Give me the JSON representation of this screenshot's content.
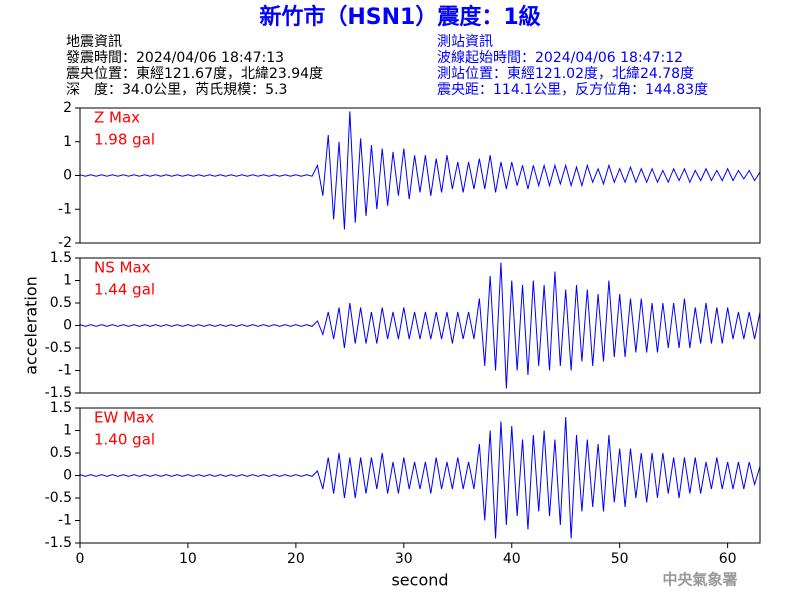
{
  "header": {
    "title": "新竹市（HSN1）震度：1級",
    "left": [
      "地震資訊",
      "發震時間：2024/04/06 18:47:13",
      "震央位置：東經121.67度，北緯23.94度",
      "深　度：34.0公里，芮氏規模：5.3"
    ],
    "right": [
      "測站資訊",
      "波線起始時間：2024/04/06 18:47:12",
      "測站位置：東經121.02度，北緯24.78度",
      "震央距：114.1公里，反方位角：144.83度"
    ]
  },
  "footer": "中央氣象署",
  "chart_data": [
    {
      "type": "line",
      "annotations": [
        "Z Max",
        "1.98 gal"
      ],
      "color": "#0000ff",
      "annotation_color": "#ff0000",
      "xlim": [
        0,
        63
      ],
      "ylim": [
        -2,
        2
      ],
      "yticks": [
        -2,
        -1,
        0,
        1,
        2
      ],
      "x": [
        0,
        0.5,
        1,
        1.5,
        2,
        2.5,
        3,
        3.5,
        4,
        4.5,
        5,
        5.5,
        6,
        6.5,
        7,
        7.5,
        8,
        8.5,
        9,
        9.5,
        10,
        10.5,
        11,
        11.5,
        12,
        12.5,
        13,
        13.5,
        14,
        14.5,
        15,
        15.5,
        16,
        16.5,
        17,
        17.5,
        18,
        18.5,
        19,
        19.5,
        20,
        20.5,
        21,
        21.5,
        22,
        22.5,
        23,
        23.5,
        24,
        24.5,
        25,
        25.5,
        26,
        26.5,
        27,
        27.5,
        28,
        28.5,
        29,
        29.5,
        30,
        30.5,
        31,
        31.5,
        32,
        32.5,
        33,
        33.5,
        34,
        34.5,
        35,
        35.5,
        36,
        36.5,
        37,
        37.5,
        38,
        38.5,
        39,
        39.5,
        40,
        40.5,
        41,
        41.5,
        42,
        42.5,
        43,
        43.5,
        44,
        44.5,
        45,
        45.5,
        46,
        46.5,
        47,
        47.5,
        48,
        48.5,
        49,
        49.5,
        50,
        50.5,
        51,
        51.5,
        52,
        52.5,
        53,
        53.5,
        54,
        54.5,
        55,
        55.5,
        56,
        56.5,
        57,
        57.5,
        58,
        58.5,
        59,
        59.5,
        60,
        60.5,
        61,
        61.5,
        62,
        62.5,
        63
      ],
      "values": [
        0.02,
        -0.02,
        0.02,
        -0.02,
        0.02,
        -0.02,
        0.02,
        -0.02,
        0.02,
        -0.02,
        0.02,
        -0.02,
        0.02,
        -0.02,
        0.02,
        -0.02,
        0.02,
        -0.02,
        0.02,
        -0.02,
        0.02,
        -0.02,
        0.02,
        -0.02,
        0.02,
        -0.02,
        0.02,
        -0.02,
        0.02,
        -0.02,
        0.02,
        -0.02,
        0.02,
        -0.02,
        0.02,
        -0.02,
        0.02,
        -0.02,
        0.02,
        -0.02,
        0.02,
        -0.02,
        0.02,
        -0.02,
        0.3,
        -0.6,
        1.2,
        -1.3,
        1.0,
        -1.6,
        1.9,
        -1.4,
        1.1,
        -1.2,
        0.9,
        -1.0,
        0.8,
        -0.9,
        0.7,
        -0.6,
        0.8,
        -0.7,
        0.6,
        -0.5,
        0.6,
        -0.6,
        0.5,
        -0.5,
        0.6,
        -0.4,
        0.4,
        -0.5,
        0.4,
        -0.4,
        0.5,
        -0.4,
        0.6,
        -0.5,
        0.4,
        -0.4,
        0.4,
        -0.3,
        0.3,
        -0.4,
        0.3,
        -0.3,
        0.3,
        -0.3,
        0.3,
        -0.25,
        0.3,
        -0.3,
        0.25,
        -0.3,
        0.3,
        -0.2,
        0.2,
        -0.25,
        0.3,
        -0.2,
        0.2,
        -0.2,
        0.25,
        -0.2,
        0.2,
        -0.2,
        0.2,
        -0.2,
        0.15,
        -0.2,
        0.2,
        -0.15,
        0.2,
        -0.2,
        0.15,
        -0.15,
        0.2,
        -0.15,
        0.15,
        -0.15,
        0.2,
        -0.15,
        0.15,
        -0.1,
        0.15,
        -0.15,
        0.1
      ]
    },
    {
      "type": "line",
      "annotations": [
        "NS Max",
        "1.44 gal"
      ],
      "color": "#0000ff",
      "annotation_color": "#ff0000",
      "ylabel": "acceleration",
      "xlim": [
        0,
        63
      ],
      "ylim": [
        -1.5,
        1.5
      ],
      "yticks": [
        -1.5,
        -1,
        -0.5,
        0,
        0.5,
        1,
        1.5
      ],
      "x": [
        0,
        0.5,
        1,
        1.5,
        2,
        2.5,
        3,
        3.5,
        4,
        4.5,
        5,
        5.5,
        6,
        6.5,
        7,
        7.5,
        8,
        8.5,
        9,
        9.5,
        10,
        10.5,
        11,
        11.5,
        12,
        12.5,
        13,
        13.5,
        14,
        14.5,
        15,
        15.5,
        16,
        16.5,
        17,
        17.5,
        18,
        18.5,
        19,
        19.5,
        20,
        20.5,
        21,
        21.5,
        22,
        22.5,
        23,
        23.5,
        24,
        24.5,
        25,
        25.5,
        26,
        26.5,
        27,
        27.5,
        28,
        28.5,
        29,
        29.5,
        30,
        30.5,
        31,
        31.5,
        32,
        32.5,
        33,
        33.5,
        34,
        34.5,
        35,
        35.5,
        36,
        36.5,
        37,
        37.5,
        38,
        38.5,
        39,
        39.5,
        40,
        40.5,
        41,
        41.5,
        42,
        42.5,
        43,
        43.5,
        44,
        44.5,
        45,
        45.5,
        46,
        46.5,
        47,
        47.5,
        48,
        48.5,
        49,
        49.5,
        50,
        50.5,
        51,
        51.5,
        52,
        52.5,
        53,
        53.5,
        54,
        54.5,
        55,
        55.5,
        56,
        56.5,
        57,
        57.5,
        58,
        58.5,
        59,
        59.5,
        60,
        60.5,
        61,
        61.5,
        62,
        62.5,
        63
      ],
      "values": [
        0.02,
        -0.02,
        0.02,
        -0.02,
        0.02,
        -0.02,
        0.02,
        -0.02,
        0.02,
        -0.02,
        0.02,
        -0.02,
        0.02,
        -0.02,
        0.02,
        -0.02,
        0.02,
        -0.02,
        0.02,
        -0.02,
        0.02,
        -0.02,
        0.02,
        -0.02,
        0.02,
        -0.02,
        0.02,
        -0.02,
        0.02,
        -0.02,
        0.02,
        -0.02,
        0.02,
        -0.02,
        0.02,
        -0.02,
        0.02,
        -0.02,
        0.02,
        -0.02,
        0.02,
        -0.02,
        0.02,
        -0.02,
        0.1,
        -0.2,
        0.3,
        -0.3,
        0.4,
        -0.5,
        0.5,
        -0.4,
        0.4,
        -0.4,
        0.3,
        -0.4,
        0.4,
        -0.3,
        0.3,
        -0.3,
        0.4,
        -0.3,
        0.3,
        -0.3,
        0.3,
        -0.3,
        0.3,
        -0.3,
        0.3,
        -0.4,
        0.3,
        -0.3,
        0.3,
        -0.3,
        0.6,
        -0.9,
        1.1,
        -1.0,
        1.4,
        -1.4,
        1.0,
        -1.0,
        0.9,
        -1.1,
        1.0,
        -0.9,
        0.9,
        -1.0,
        1.2,
        -0.9,
        0.8,
        -1.0,
        0.9,
        -0.8,
        0.8,
        -0.9,
        0.7,
        -0.8,
        1.0,
        -0.7,
        0.7,
        -0.7,
        0.6,
        -0.6,
        0.6,
        -0.6,
        0.5,
        -0.6,
        0.5,
        -0.5,
        0.5,
        -0.5,
        0.6,
        -0.5,
        0.4,
        -0.4,
        0.5,
        -0.4,
        0.4,
        -0.4,
        0.4,
        -0.3,
        0.3,
        -0.3,
        0.3,
        -0.3,
        0.3
      ]
    },
    {
      "type": "line",
      "annotations": [
        "EW Max",
        "1.40 gal"
      ],
      "color": "#0000ff",
      "annotation_color": "#ff0000",
      "xlabel": "second",
      "xlim": [
        0,
        63
      ],
      "xticks": [
        0,
        10,
        20,
        30,
        40,
        50,
        60
      ],
      "ylim": [
        -1.5,
        1.5
      ],
      "yticks": [
        -1.5,
        -1,
        -0.5,
        0,
        0.5,
        1,
        1.5
      ],
      "x": [
        0,
        0.5,
        1,
        1.5,
        2,
        2.5,
        3,
        3.5,
        4,
        4.5,
        5,
        5.5,
        6,
        6.5,
        7,
        7.5,
        8,
        8.5,
        9,
        9.5,
        10,
        10.5,
        11,
        11.5,
        12,
        12.5,
        13,
        13.5,
        14,
        14.5,
        15,
        15.5,
        16,
        16.5,
        17,
        17.5,
        18,
        18.5,
        19,
        19.5,
        20,
        20.5,
        21,
        21.5,
        22,
        22.5,
        23,
        23.5,
        24,
        24.5,
        25,
        25.5,
        26,
        26.5,
        27,
        27.5,
        28,
        28.5,
        29,
        29.5,
        30,
        30.5,
        31,
        31.5,
        32,
        32.5,
        33,
        33.5,
        34,
        34.5,
        35,
        35.5,
        36,
        36.5,
        37,
        37.5,
        38,
        38.5,
        39,
        39.5,
        40,
        40.5,
        41,
        41.5,
        42,
        42.5,
        43,
        43.5,
        44,
        44.5,
        45,
        45.5,
        46,
        46.5,
        47,
        47.5,
        48,
        48.5,
        49,
        49.5,
        50,
        50.5,
        51,
        51.5,
        52,
        52.5,
        53,
        53.5,
        54,
        54.5,
        55,
        55.5,
        56,
        56.5,
        57,
        57.5,
        58,
        58.5,
        59,
        59.5,
        60,
        60.5,
        61,
        61.5,
        62,
        62.5,
        63
      ],
      "values": [
        0.02,
        -0.02,
        0.02,
        -0.02,
        0.02,
        -0.02,
        0.02,
        -0.02,
        0.02,
        -0.02,
        0.02,
        -0.02,
        0.02,
        -0.02,
        0.02,
        -0.02,
        0.02,
        -0.02,
        0.02,
        -0.02,
        0.02,
        -0.02,
        0.02,
        -0.02,
        0.02,
        -0.02,
        0.02,
        -0.02,
        0.02,
        -0.02,
        0.02,
        -0.02,
        0.02,
        -0.02,
        0.02,
        -0.02,
        0.02,
        -0.02,
        0.02,
        -0.02,
        0.02,
        -0.02,
        0.02,
        -0.02,
        0.1,
        -0.3,
        0.4,
        -0.4,
        0.5,
        -0.5,
        0.4,
        -0.5,
        0.4,
        -0.4,
        0.4,
        -0.3,
        0.5,
        -0.4,
        0.3,
        -0.4,
        0.4,
        -0.3,
        0.3,
        -0.3,
        0.3,
        -0.4,
        0.4,
        -0.3,
        0.3,
        -0.3,
        0.4,
        -0.3,
        0.3,
        -0.3,
        0.7,
        -1.0,
        1.0,
        -1.4,
        1.2,
        -1.1,
        1.1,
        -0.9,
        0.8,
        -1.2,
        0.9,
        -0.8,
        1.0,
        -0.9,
        0.8,
        -1.1,
        1.3,
        -1.4,
        0.9,
        -0.8,
        0.8,
        -0.7,
        0.7,
        -0.8,
        0.9,
        -0.6,
        0.6,
        -0.7,
        0.6,
        -0.5,
        0.5,
        -0.6,
        0.5,
        -0.5,
        0.5,
        -0.4,
        0.4,
        -0.5,
        0.4,
        -0.4,
        0.4,
        -0.4,
        0.3,
        -0.3,
        0.4,
        -0.3,
        0.3,
        -0.3,
        0.3,
        -0.3,
        0.3,
        -0.2,
        0.2
      ]
    }
  ]
}
